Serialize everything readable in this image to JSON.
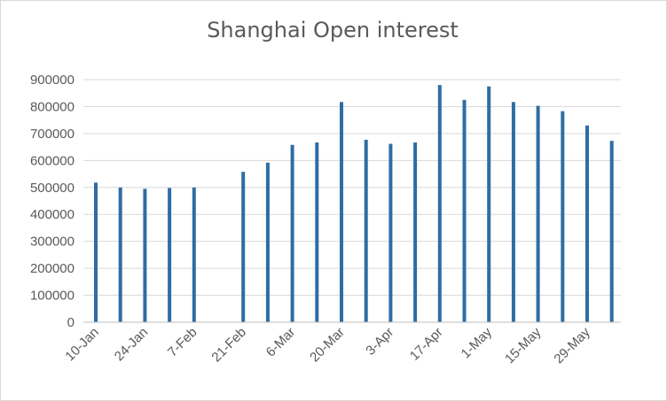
{
  "chart_data": {
    "type": "bar",
    "title": "Shanghai Open interest",
    "xlabel": "",
    "ylabel": "",
    "ylim": [
      0,
      900000
    ],
    "yticks": [
      0,
      100000,
      200000,
      300000,
      400000,
      500000,
      600000,
      700000,
      800000,
      900000
    ],
    "grid": true,
    "legend": "none",
    "categories": [
      "10-Jan",
      "17-Jan",
      "24-Jan",
      "31-Jan",
      "7-Feb",
      "14-Feb",
      "21-Feb",
      "28-Feb",
      "6-Mar",
      "13-Mar",
      "20-Mar",
      "27-Mar",
      "3-Apr",
      "10-Apr",
      "17-Apr",
      "24-Apr",
      "1-May",
      "8-May",
      "15-May",
      "22-May",
      "29-May",
      "5-Jun"
    ],
    "xtick_labels": [
      "10-Jan",
      "24-Jan",
      "7-Feb",
      "21-Feb",
      "6-Mar",
      "20-Mar",
      "3-Apr",
      "17-Apr",
      "1-May",
      "15-May",
      "29-May"
    ],
    "values": [
      518000,
      500000,
      495000,
      498000,
      500000,
      null,
      558000,
      592000,
      658000,
      667000,
      817000,
      677000,
      662000,
      667000,
      880000,
      825000,
      875000,
      817000,
      803000,
      783000,
      730000,
      673000
    ],
    "colors": {
      "bar": "#2e6da4",
      "grid": "#d9d9d9",
      "axis": "#bfbfbf",
      "text": "#595959"
    }
  }
}
